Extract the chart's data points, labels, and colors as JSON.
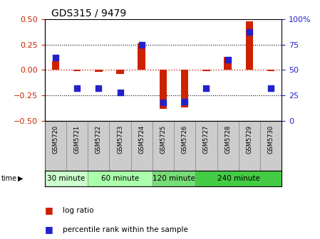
{
  "title": "GDS315 / 9479",
  "samples": [
    "GSM5720",
    "GSM5721",
    "GSM5722",
    "GSM5723",
    "GSM5724",
    "GSM5725",
    "GSM5726",
    "GSM5727",
    "GSM5728",
    "GSM5729",
    "GSM5730"
  ],
  "log_ratio": [
    0.09,
    -0.01,
    -0.02,
    -0.04,
    0.26,
    -0.38,
    -0.37,
    -0.01,
    0.13,
    0.48,
    -0.01
  ],
  "percentile": [
    0.62,
    0.32,
    0.32,
    0.28,
    0.75,
    0.18,
    0.19,
    0.32,
    0.6,
    0.87,
    0.32
  ],
  "groups": [
    {
      "label": "30 minute",
      "start": 0,
      "end": 2,
      "color": "#ccffcc"
    },
    {
      "label": "60 minute",
      "start": 2,
      "end": 5,
      "color": "#aaffaa"
    },
    {
      "label": "120 minute",
      "start": 5,
      "end": 7,
      "color": "#77dd77"
    },
    {
      "label": "240 minute",
      "start": 7,
      "end": 11,
      "color": "#44cc44"
    }
  ],
  "ylim_left": [
    -0.5,
    0.5
  ],
  "ylim_right": [
    0,
    100
  ],
  "yticks_left": [
    -0.5,
    -0.25,
    0.0,
    0.25,
    0.5
  ],
  "yticks_right": [
    0,
    25,
    50,
    75,
    100
  ],
  "bar_color": "#cc2200",
  "dot_color": "#2222cc",
  "hline_color": "#cc2200",
  "grid_color": "#000000",
  "background_color": "#ffffff",
  "plot_bg": "#ffffff",
  "bar_width": 0.35,
  "dot_size": 28
}
